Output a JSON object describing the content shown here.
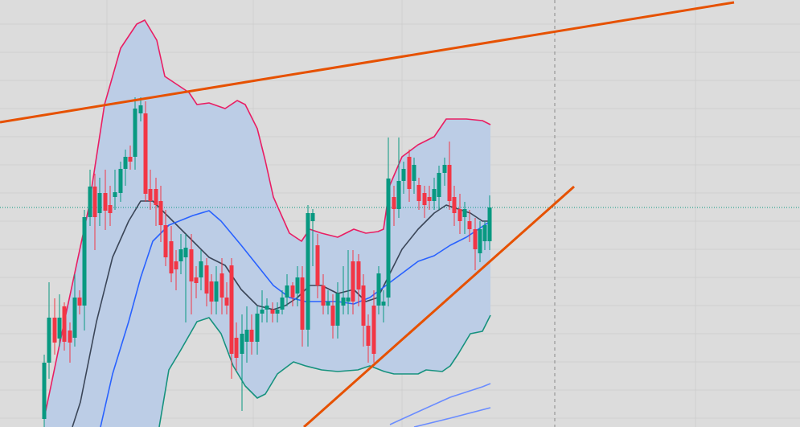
{
  "chart_data": {
    "type": "candlestick",
    "background": "#dcdcdc",
    "grid": true,
    "grid_color": "#cfcfcf",
    "xlim": [
      0,
      995
    ],
    "ylim": [
      0,
      531
    ],
    "xticks": [
      133,
      315,
      500,
      865
    ],
    "yticks": [
      11,
      46,
      81,
      116,
      151,
      186,
      221,
      256,
      291,
      326,
      361,
      396,
      431,
      466,
      501
    ],
    "up_color": "#089981",
    "down_color": "#f23645",
    "candles": {
      "x": [
        55,
        61,
        68,
        74,
        80,
        87,
        93,
        99,
        105,
        112,
        118,
        124,
        131,
        137,
        143,
        150,
        156,
        162,
        168,
        175,
        181,
        187,
        194,
        200,
        206,
        213,
        219,
        225,
        231,
        238,
        244,
        250,
        257,
        263,
        269,
        276,
        282,
        288,
        294,
        301,
        307,
        313,
        320,
        326,
        332,
        339,
        345,
        351,
        357,
        364,
        370,
        376,
        383,
        389,
        395,
        402,
        408,
        414,
        420,
        427,
        433,
        439,
        446,
        452,
        458,
        465,
        471,
        477,
        483,
        490,
        496,
        502,
        509,
        515,
        521,
        528,
        534,
        540,
        546,
        553,
        559,
        565,
        572,
        578,
        584,
        591,
        597,
        603,
        609
      ],
      "open": [
        10,
        80,
        136,
        110,
        150,
        120,
        111,
        161,
        151,
        261,
        299,
        266,
        291,
        276,
        286,
        291,
        321,
        336,
        336,
        390,
        390,
        296,
        296,
        281,
        251,
        231,
        206,
        206,
        211,
        221,
        186,
        186,
        201,
        181,
        156,
        191,
        161,
        201,
        111,
        91,
        106,
        121,
        106,
        141,
        146,
        146,
        141,
        146,
        161,
        176,
        166,
        186,
        121,
        256,
        226,
        176,
        151,
        151,
        126,
        151,
        156,
        206,
        206,
        176,
        126,
        151,
        151,
        151,
        161,
        286,
        271,
        306,
        336,
        306,
        301,
        291,
        286,
        281,
        286,
        316,
        326,
        286,
        271,
        261,
        256,
        246,
        216,
        231,
        231
      ],
      "high": [
        90,
        180,
        160,
        165,
        155,
        130,
        190,
        170,
        270,
        320,
        315,
        310,
        320,
        300,
        320,
        330,
        345,
        350,
        410,
        410,
        405,
        320,
        310,
        300,
        270,
        250,
        220,
        240,
        240,
        240,
        200,
        220,
        210,
        190,
        200,
        210,
        180,
        210,
        130,
        140,
        150,
        140,
        150,
        170,
        160,
        155,
        155,
        170,
        190,
        180,
        200,
        200,
        276,
        271,
        240,
        190,
        170,
        165,
        180,
        200,
        220,
        220,
        215,
        190,
        140,
        170,
        200,
        170,
        360,
        300,
        360,
        330,
        345,
        335,
        310,
        300,
        300,
        310,
        325,
        335,
        355,
        300,
        290,
        280,
        270,
        260,
        256,
        256,
        288
      ],
      "low": [
        0,
        60,
        90,
        100,
        95,
        80,
        100,
        140,
        120,
        250,
        220,
        250,
        245,
        250,
        270,
        280,
        300,
        320,
        320,
        380,
        280,
        270,
        250,
        230,
        200,
        180,
        170,
        190,
        130,
        140,
        160,
        170,
        150,
        140,
        140,
        140,
        140,
        60,
        70,
        20,
        80,
        90,
        90,
        130,
        130,
        130,
        130,
        140,
        150,
        150,
        150,
        100,
        100,
        200,
        160,
        140,
        140,
        110,
        110,
        140,
        140,
        140,
        150,
        100,
        80,
        80,
        140,
        130,
        150,
        250,
        260,
        290,
        280,
        290,
        270,
        260,
        270,
        270,
        270,
        300,
        270,
        250,
        240,
        240,
        230,
        195,
        205,
        220,
        220
      ],
      "close": [
        80,
        136,
        105,
        136,
        106,
        105,
        161,
        151,
        261,
        299,
        261,
        291,
        269,
        266,
        292,
        321,
        336,
        330,
        396,
        400,
        290,
        281,
        276,
        251,
        211,
        191,
        196,
        221,
        223,
        181,
        179,
        206,
        166,
        156,
        181,
        161,
        151,
        91,
        86,
        116,
        121,
        106,
        141,
        146,
        151,
        141,
        146,
        161,
        176,
        161,
        186,
        121,
        266,
        266,
        176,
        151,
        156,
        126,
        166,
        161,
        161,
        156,
        171,
        126,
        101,
        91,
        191,
        156,
        309,
        271,
        306,
        321,
        296,
        326,
        281,
        276,
        281,
        296,
        316,
        326,
        281,
        266,
        256,
        271,
        246,
        221,
        246,
        251,
        273
      ]
    },
    "band_fill": "#bccde6",
    "lines": [
      {
        "color": "#e91e63",
        "x": [
          55,
          80,
          110,
          130,
          150,
          170,
          180,
          195,
          205,
          220,
          235,
          245,
          260,
          280,
          295,
          305,
          320,
          330,
          340,
          360,
          375,
          385,
          400,
          420,
          440,
          455,
          470,
          477,
          485,
          500,
          520,
          540,
          555,
          580,
          600,
          610
        ],
        "values": [
          11,
          131,
          271,
          401,
          471,
          501,
          506,
          481,
          436,
          426,
          416,
          401,
          403,
          396,
          406,
          401,
          371,
          331,
          286,
          241,
          231,
          246,
          241,
          236,
          246,
          241,
          243,
          246,
          301,
          336,
          351,
          361,
          383,
          383,
          381,
          376
        ]
      },
      {
        "color": "#16927e",
        "x": [
          198,
          210,
          225,
          245,
          260,
          275,
          290,
          305,
          320,
          330,
          345,
          365,
          380,
          400,
          420,
          445,
          460,
          478,
          490,
          520,
          530,
          550,
          560,
          570,
          585,
          600,
          610
        ],
        "values": [
          0,
          71,
          96,
          131,
          136,
          116,
          76,
          51,
          36,
          41,
          66,
          81,
          76,
          71,
          69,
          71,
          76,
          69,
          66,
          66,
          71,
          69,
          76,
          91,
          116,
          119,
          139
        ]
      },
      {
        "color": "#3b4658",
        "x": [
          90,
          100,
          120,
          140,
          160,
          175,
          190,
          200,
          220,
          240,
          260,
          280,
          300,
          320,
          340,
          355,
          370,
          385,
          400,
          420,
          440,
          455,
          470,
          480,
          500,
          520,
          540,
          555,
          570,
          585,
          600,
          610
        ],
        "values": [
          0,
          31,
          131,
          211,
          256,
          281,
          281,
          271,
          251,
          231,
          211,
          201,
          171,
          151,
          146,
          151,
          161,
          176,
          176,
          166,
          171,
          156,
          161,
          181,
          221,
          246,
          266,
          276,
          271,
          266,
          256,
          256
        ]
      },
      {
        "color": "#2962ff",
        "x": [
          125,
          140,
          160,
          175,
          190,
          210,
          240,
          260,
          275,
          300,
          320,
          340,
          360,
          380,
          400,
          420,
          440,
          460,
          480,
          500,
          520,
          540,
          560,
          580,
          595,
          610
        ],
        "values": [
          0,
          66,
          131,
          186,
          231,
          251,
          263,
          269,
          256,
          226,
          201,
          176,
          161,
          156,
          156,
          156,
          153,
          161,
          176,
          191,
          206,
          213,
          226,
          236,
          246,
          256
        ]
      },
      {
        "color": "#6a8cff",
        "x": [
          485,
          520,
          560,
          600,
          610
        ],
        "values": [
          3,
          19,
          37,
          50,
          54
        ]
      },
      {
        "color": "#6a8cff",
        "x": [
          515,
          560,
          610
        ],
        "values": [
          0,
          11,
          24
        ]
      }
    ],
    "trendlines": [
      {
        "color": "#e65100",
        "x": [
          0,
          913
        ],
        "values": [
          379,
          528
        ]
      },
      {
        "color": "#e65100",
        "x": [
          378,
          714
        ],
        "values": [
          0,
          299
        ]
      }
    ],
    "price_line": {
      "value": 273,
      "color": "#089981"
    },
    "cursor_line": {
      "x": 690,
      "color": "#8a8a8a"
    }
  }
}
